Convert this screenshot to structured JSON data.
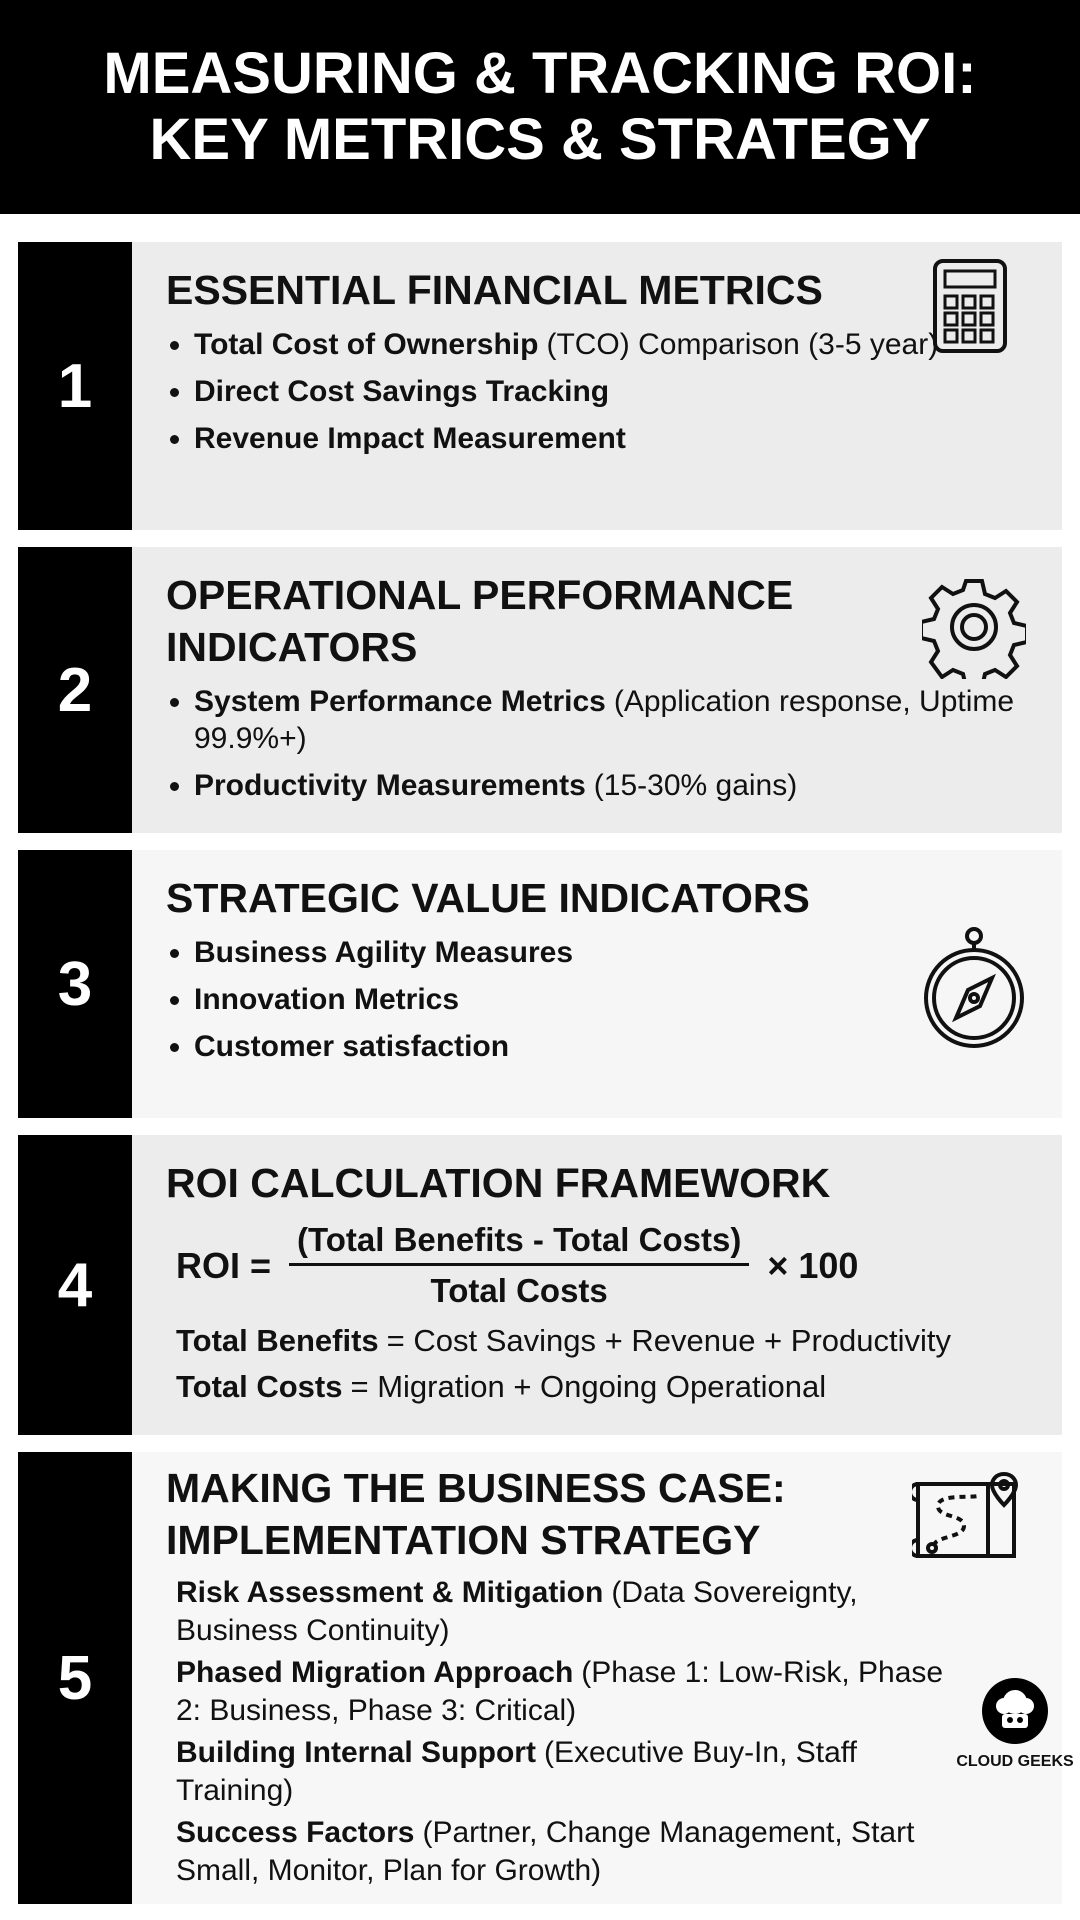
{
  "header": {
    "title_lines": [
      "MEASURING & TRACKING ROI:",
      "KEY METRICS & STRATEGY"
    ]
  },
  "sections": [
    {
      "number": "1",
      "title_lines": [
        "ESSENTIAL FINANCIAL METRICS"
      ],
      "items": [
        {
          "bold": "Total Cost of Ownership",
          "rest": "(TCO) Comparison (3-5 year)"
        },
        {
          "bold": "Direct Cost Savings Tracking"
        },
        {
          "bold": "Revenue Impact Measurement"
        }
      ]
    },
    {
      "number": "2",
      "title_lines": [
        "OPERATIONAL PERFORMANCE",
        "INDICATORS"
      ],
      "items": [
        {
          "bold": "System Performance Metrics",
          "rest": "(Application response, Uptime 99.9%+)"
        },
        {
          "bold": "Productivity Measurements",
          "rest": "(15-30% gains)"
        }
      ]
    },
    {
      "number": "3",
      "title_lines": [
        "STRATEGIC VALUE INDICATORS"
      ],
      "items": [
        {
          "bold": "Business Agility Measures"
        },
        {
          "bold": "Innovation Metrics"
        },
        {
          "bold": "Customer satisfaction"
        }
      ]
    },
    {
      "number": "4",
      "title_lines": [
        "ROI CALCULATION FRAMEWORK"
      ],
      "formula": {
        "lhs": "ROI =",
        "numerator": "(Total Benefits - Total Costs)",
        "denominator": "Total Costs",
        "multiplier": "× 100"
      },
      "definitions": [
        {
          "bold": "Total Benefits",
          "rest": "= Cost Savings + Revenue + Productivity"
        },
        {
          "bold": "Total Costs",
          "rest": "= Migration + Ongoing Operational"
        }
      ]
    },
    {
      "number": "5",
      "title_lines": [
        "MAKING THE BUSINESS CASE:",
        "IMPLEMENTATION STRATEGY"
      ],
      "items": [
        {
          "bold": "Risk Assessment & Mitigation",
          "rest": "(Data Sovereignty, Business Continuity)"
        },
        {
          "bold": "Phased Migration Approach",
          "rest": "(Phase 1: Low-Risk, Phase 2: Business, Phase 3: Critical)"
        },
        {
          "bold": "Building Internal Support",
          "rest": "(Executive Buy-In, Staff Training)"
        },
        {
          "bold": "Success Factors",
          "rest": "(Partner, Change Management, Start Small, Monitor, Plan for Growth)"
        }
      ]
    }
  ],
  "logo": {
    "text": "CLOUD GEEKS"
  }
}
